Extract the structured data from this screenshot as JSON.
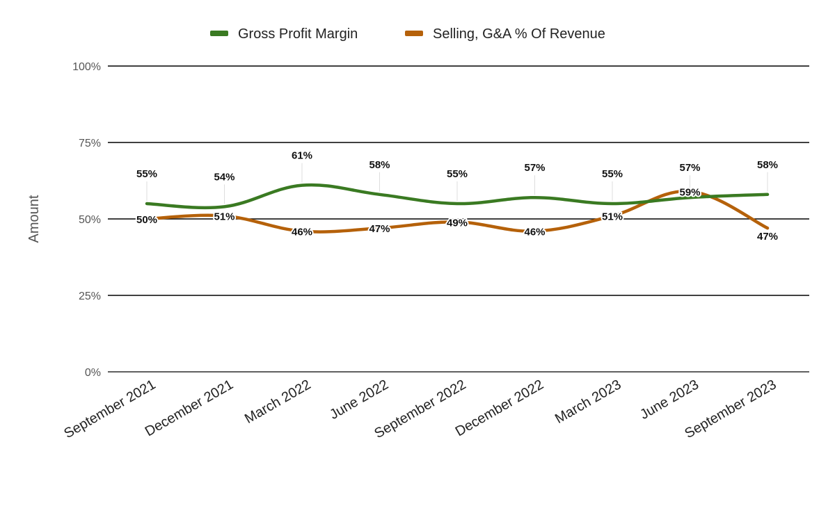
{
  "chart_data": {
    "type": "line",
    "ylabel": "Amount",
    "xlabel": "",
    "ylim": [
      0,
      100
    ],
    "y_ticks": [
      "0%",
      "25%",
      "50%",
      "75%",
      "100%"
    ],
    "y_tick_values": [
      0,
      25,
      50,
      75,
      100
    ],
    "grid": true,
    "legend_position": "top",
    "categories": [
      "September 2021",
      "December 2021",
      "March 2022",
      "June 2022",
      "September 2022",
      "December 2022",
      "March 2023",
      "June 2023",
      "September 2023"
    ],
    "series": [
      {
        "name": "Gross Profit Margin",
        "color": "#3a7a22",
        "values": [
          55,
          54,
          61,
          58,
          55,
          57,
          55,
          57,
          58
        ],
        "labels": [
          "55%",
          "54%",
          "61%",
          "58%",
          "55%",
          "57%",
          "55%",
          "57%",
          "58%"
        ]
      },
      {
        "name": "Selling, G&A % Of Revenue",
        "color": "#b5610a",
        "values": [
          50,
          51,
          46,
          47,
          49,
          46,
          51,
          59,
          47
        ],
        "labels": [
          "50%",
          "51%",
          "46%",
          "47%",
          "49%",
          "46%",
          "51%",
          "59%",
          "47%"
        ]
      }
    ]
  }
}
